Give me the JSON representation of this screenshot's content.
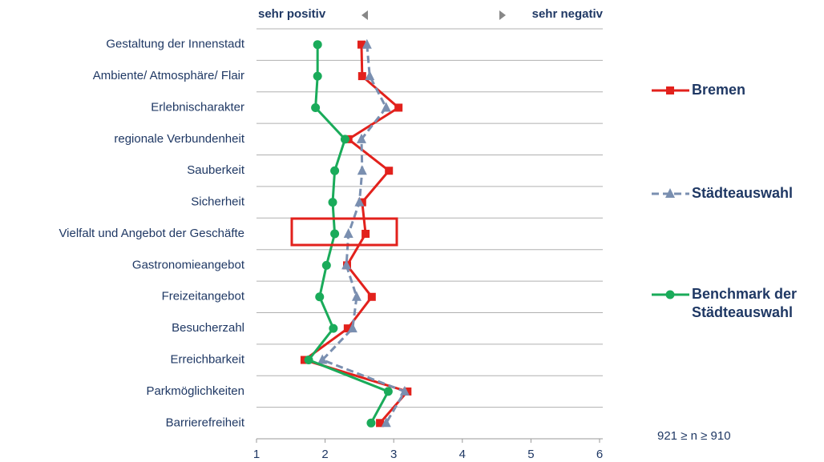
{
  "chart_data": {
    "type": "line",
    "orientation": "horizontal",
    "label_left": "sehr positiv",
    "label_right": "sehr negativ",
    "categories": [
      "Gestaltung der Innenstadt",
      "Ambiente/ Atmosphäre/ Flair",
      "Erlebnischarakter",
      "regionale Verbundenheit",
      "Sauberkeit",
      "Sicherheit",
      "Vielfalt und Angebot der Geschäfte",
      "Gastronomieangebot",
      "Freizeitangebot",
      "Besucherzahl",
      "Erreichbarkeit",
      "Parkmöglichkeiten",
      "Barrierefreiheit"
    ],
    "series": [
      {
        "name": "Bremen",
        "color": "#e2211c",
        "marker": "square",
        "dash": false,
        "values": [
          2.53,
          2.54,
          3.07,
          2.34,
          2.93,
          2.54,
          2.59,
          2.32,
          2.68,
          2.33,
          1.7,
          3.2,
          2.8
        ]
      },
      {
        "name": "Städteauswahl",
        "color": "#7a8fb0",
        "marker": "triangle",
        "dash": true,
        "values": [
          2.61,
          2.65,
          2.89,
          2.53,
          2.54,
          2.5,
          2.34,
          2.31,
          2.46,
          2.4,
          1.96,
          3.16,
          2.89
        ]
      },
      {
        "name": "Benchmark der Städteauswahl",
        "color": "#1aab5a",
        "marker": "circle",
        "dash": false,
        "values": [
          1.89,
          1.89,
          1.86,
          2.29,
          2.14,
          2.11,
          2.14,
          2.02,
          1.92,
          2.12,
          1.76,
          2.92,
          2.67
        ]
      }
    ],
    "xlim": [
      1,
      6
    ],
    "xticks": [
      1,
      2,
      3,
      4,
      5,
      6
    ],
    "annotation": "921 ≥ n ≥ 910"
  }
}
